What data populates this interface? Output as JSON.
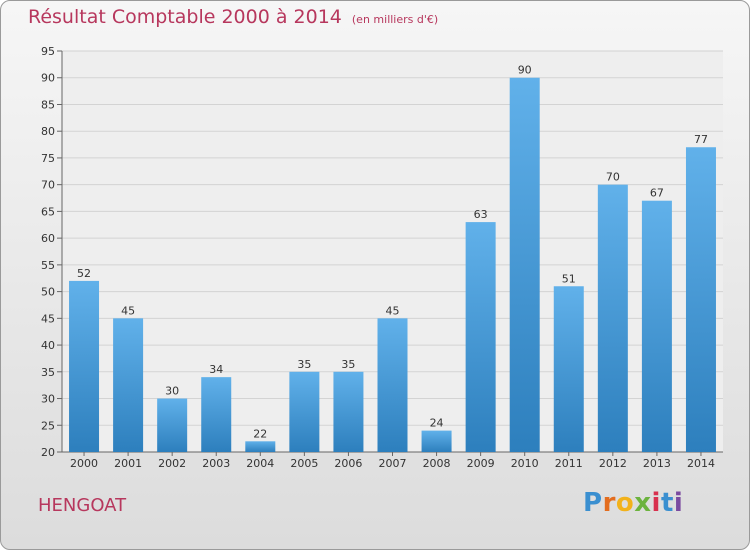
{
  "title": "Résultat Comptable 2000 à 2014",
  "unit": "(en milliers d'€)",
  "place": "HENGOAT",
  "logo": {
    "text": "Proxiti",
    "letters": [
      "P",
      "r",
      "o",
      "x",
      "i",
      "t",
      "i"
    ],
    "colors": [
      "#3a8fd0",
      "#e36d1f",
      "#f2b21b",
      "#6cb33e",
      "#d8304e",
      "#3a8fd0",
      "#7a4aa0"
    ]
  },
  "colors": {
    "title": "#b7375d",
    "bar_light": "#61b1ea",
    "bar_dark": "#2d7fbd"
  },
  "chart_data": {
    "type": "bar",
    "title": "Résultat Comptable 2000 à 2014",
    "subtitle": "(en milliers d'€)",
    "categories": [
      "2000",
      "2001",
      "2002",
      "2003",
      "2004",
      "2005",
      "2006",
      "2007",
      "2008",
      "2009",
      "2010",
      "2011",
      "2012",
      "2013",
      "2014"
    ],
    "values": [
      52,
      45,
      30,
      34,
      22,
      35,
      35,
      45,
      24,
      63,
      90,
      51,
      70,
      67,
      77
    ],
    "ylim": [
      20,
      95
    ],
    "yticks": [
      20,
      25,
      30,
      35,
      40,
      45,
      50,
      55,
      60,
      65,
      70,
      75,
      80,
      85,
      90,
      95
    ],
    "grid": true,
    "legend": "none"
  }
}
